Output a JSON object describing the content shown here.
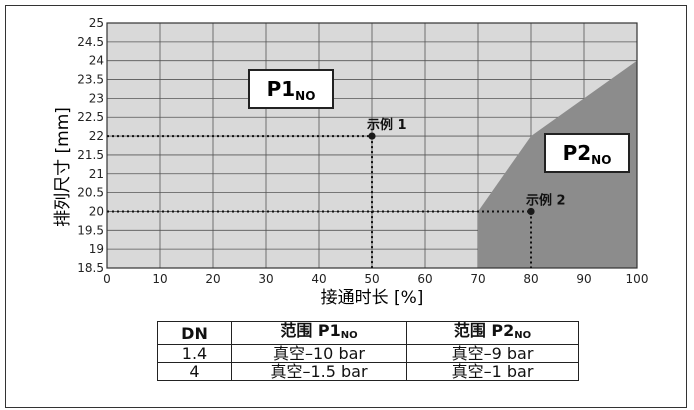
{
  "chart_data": {
    "type": "area",
    "xlabel": "接通时长 [%]",
    "ylabel": "排列尺寸 [mm]",
    "xlim": [
      0,
      100
    ],
    "ylim": [
      18.5,
      25
    ],
    "x_ticks": [
      "0",
      "10",
      "20",
      "30",
      "40",
      "50",
      "60",
      "70",
      "80",
      "90",
      "100"
    ],
    "y_ticks": [
      "18.5",
      "19",
      "19.5",
      "20",
      "20.5",
      "21",
      "21.5",
      "22",
      "22.5",
      "23",
      "23.5",
      "24",
      "24.5",
      "25"
    ],
    "grid": true,
    "regions": [
      {
        "name": "P1",
        "subscript": "NO",
        "color": "#d9d9d9"
      },
      {
        "name": "P2",
        "subscript": "NO",
        "color": "#8c8c8c"
      }
    ],
    "boundary": {
      "x": [
        70,
        70,
        80,
        100,
        100
      ],
      "y": [
        18.5,
        20,
        22,
        24,
        18.5
      ]
    },
    "examples": [
      {
        "label": "示例 1",
        "x": 50,
        "y": 22
      },
      {
        "label": "示例 2",
        "x": 80,
        "y": 20
      }
    ]
  },
  "table": {
    "headers": [
      {
        "main": "DN",
        "sub": ""
      },
      {
        "main": "范围 P1",
        "sub": "NO"
      },
      {
        "main": "范围 P2",
        "sub": "NO"
      }
    ],
    "rows": [
      [
        "1.4",
        "真空–10 bar",
        "真空–9 bar"
      ],
      [
        "4",
        "真空–1.5 bar",
        "真空–1 bar"
      ]
    ]
  },
  "colors": {
    "grid": "#555555",
    "axis": "#333333",
    "point": "#1a1a1a"
  }
}
